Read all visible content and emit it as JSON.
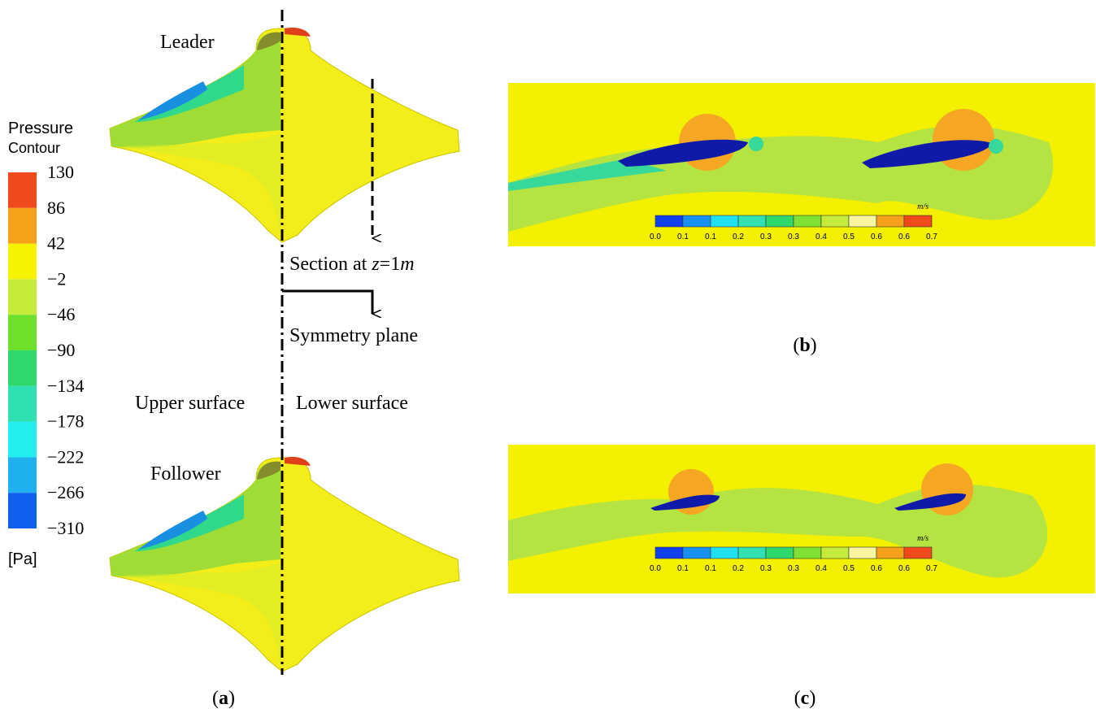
{
  "panel_a": {
    "legend": {
      "title": "Pressure",
      "subtitle": "Contour",
      "ticks": [
        "130",
        "86",
        "42",
        "−2",
        "−46",
        "−90",
        "−134",
        "−178",
        "−222",
        "−266",
        "−310"
      ],
      "unit": "[Pa]"
    },
    "leader": "Leader",
    "follower": "Follower",
    "section": {
      "prefix": "Section at ",
      "variable": "z",
      "equals": "=1",
      "unit": "m"
    },
    "symmetry": "Symmetry plane",
    "upper": "Upper surface",
    "lower": "Lower surface",
    "caption": {
      "open": "(",
      "letter": "a",
      "close": ")"
    }
  },
  "panel_b": {
    "colorbar": {
      "unit": "m/s",
      "ticks": [
        "0.0",
        "0.1",
        "0.1",
        "0.2",
        "0.3",
        "0.3",
        "0.4",
        "0.5",
        "0.6",
        "0.6",
        "0.7"
      ]
    },
    "caption": {
      "open": "(",
      "letter": "b",
      "close": ")"
    }
  },
  "panel_c": {
    "colorbar": {
      "unit": "m/s",
      "ticks": [
        "0.0",
        "0.1",
        "0.1",
        "0.2",
        "0.3",
        "0.3",
        "0.4",
        "0.5",
        "0.6",
        "0.6",
        "0.7"
      ]
    },
    "caption": {
      "open": "(",
      "letter": "c",
      "close": ")"
    }
  }
}
